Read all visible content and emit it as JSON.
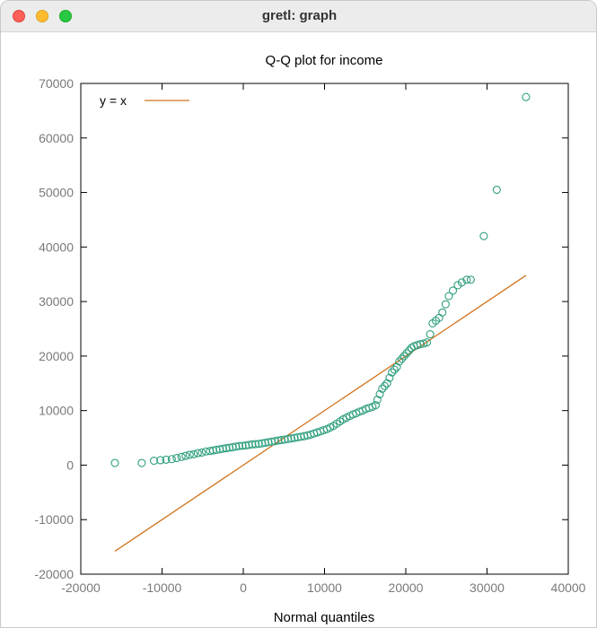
{
  "window": {
    "title": "gretl: graph"
  },
  "chart_data": {
    "type": "scatter",
    "title": "Q-Q plot for income",
    "xlabel": "Normal quantiles",
    "ylabel": "",
    "xlim": [
      -20000,
      40000
    ],
    "ylim": [
      -20000,
      70000
    ],
    "xticks": [
      -20000,
      -10000,
      0,
      10000,
      20000,
      30000,
      40000
    ],
    "yticks": [
      -20000,
      -10000,
      0,
      10000,
      20000,
      30000,
      40000,
      50000,
      60000,
      70000
    ],
    "grid": false,
    "legend_position": "top-left",
    "series": [
      {
        "kind": "points",
        "marker": "open-circle",
        "color": "#2e9e7e",
        "points": [
          [
            -15800,
            400
          ],
          [
            -12500,
            400
          ],
          [
            -11000,
            800
          ],
          [
            -10200,
            900
          ],
          [
            -9500,
            1000
          ],
          [
            -8800,
            1100
          ],
          [
            -8200,
            1300
          ],
          [
            -7600,
            1500
          ],
          [
            -7100,
            1700
          ],
          [
            -6600,
            1900
          ],
          [
            -6100,
            2000
          ],
          [
            -5600,
            2200
          ],
          [
            -5100,
            2300
          ],
          [
            -4600,
            2500
          ],
          [
            -4100,
            2600
          ],
          [
            -3700,
            2700
          ],
          [
            -3300,
            2800
          ],
          [
            -2900,
            2900
          ],
          [
            -2500,
            3000
          ],
          [
            -2100,
            3100
          ],
          [
            -1700,
            3200
          ],
          [
            -1300,
            3300
          ],
          [
            -900,
            3400
          ],
          [
            -500,
            3500
          ],
          [
            -100,
            3550
          ],
          [
            300,
            3600
          ],
          [
            700,
            3700
          ],
          [
            1100,
            3800
          ],
          [
            1500,
            3850
          ],
          [
            1900,
            3900
          ],
          [
            2300,
            4000
          ],
          [
            2700,
            4100
          ],
          [
            3100,
            4200
          ],
          [
            3500,
            4300
          ],
          [
            3900,
            4400
          ],
          [
            4300,
            4500
          ],
          [
            4700,
            4600
          ],
          [
            5100,
            4700
          ],
          [
            5500,
            4800
          ],
          [
            5900,
            4900
          ],
          [
            6300,
            5000
          ],
          [
            6700,
            5100
          ],
          [
            7100,
            5200
          ],
          [
            7500,
            5300
          ],
          [
            7900,
            5450
          ],
          [
            8300,
            5600
          ],
          [
            8700,
            5800
          ],
          [
            9100,
            6000
          ],
          [
            9500,
            6200
          ],
          [
            9900,
            6400
          ],
          [
            10300,
            6600
          ],
          [
            10700,
            6900
          ],
          [
            11100,
            7200
          ],
          [
            11500,
            7600
          ],
          [
            11900,
            8000
          ],
          [
            12300,
            8400
          ],
          [
            12700,
            8700
          ],
          [
            13100,
            9000
          ],
          [
            13500,
            9300
          ],
          [
            13900,
            9500
          ],
          [
            14300,
            9800
          ],
          [
            14700,
            10000
          ],
          [
            15100,
            10300
          ],
          [
            15500,
            10500
          ],
          [
            15900,
            10700
          ],
          [
            16300,
            11000
          ],
          [
            16500,
            12000
          ],
          [
            16800,
            13000
          ],
          [
            17100,
            14000
          ],
          [
            17400,
            14500
          ],
          [
            17700,
            15000
          ],
          [
            18000,
            16000
          ],
          [
            18300,
            17000
          ],
          [
            18600,
            17500
          ],
          [
            18900,
            18000
          ],
          [
            19200,
            19000
          ],
          [
            19500,
            19500
          ],
          [
            19800,
            20000
          ],
          [
            20100,
            20500
          ],
          [
            20400,
            21000
          ],
          [
            20700,
            21500
          ],
          [
            21000,
            21800
          ],
          [
            21400,
            22000
          ],
          [
            21800,
            22200
          ],
          [
            22200,
            22300
          ],
          [
            22600,
            22500
          ],
          [
            23000,
            24000
          ],
          [
            23300,
            26000
          ],
          [
            23700,
            26500
          ],
          [
            24100,
            27000
          ],
          [
            24500,
            28000
          ],
          [
            24900,
            29500
          ],
          [
            25300,
            31000
          ],
          [
            25800,
            32000
          ],
          [
            26400,
            33000
          ],
          [
            26900,
            33500
          ],
          [
            27500,
            34000
          ],
          [
            28000,
            34000
          ],
          [
            29600,
            42000
          ],
          [
            31200,
            50500
          ],
          [
            34800,
            67500
          ]
        ]
      },
      {
        "name": "y = x",
        "kind": "line",
        "color": "#d2741e",
        "points": [
          [
            -15800,
            -15800
          ],
          [
            34800,
            34800
          ]
        ]
      }
    ]
  }
}
